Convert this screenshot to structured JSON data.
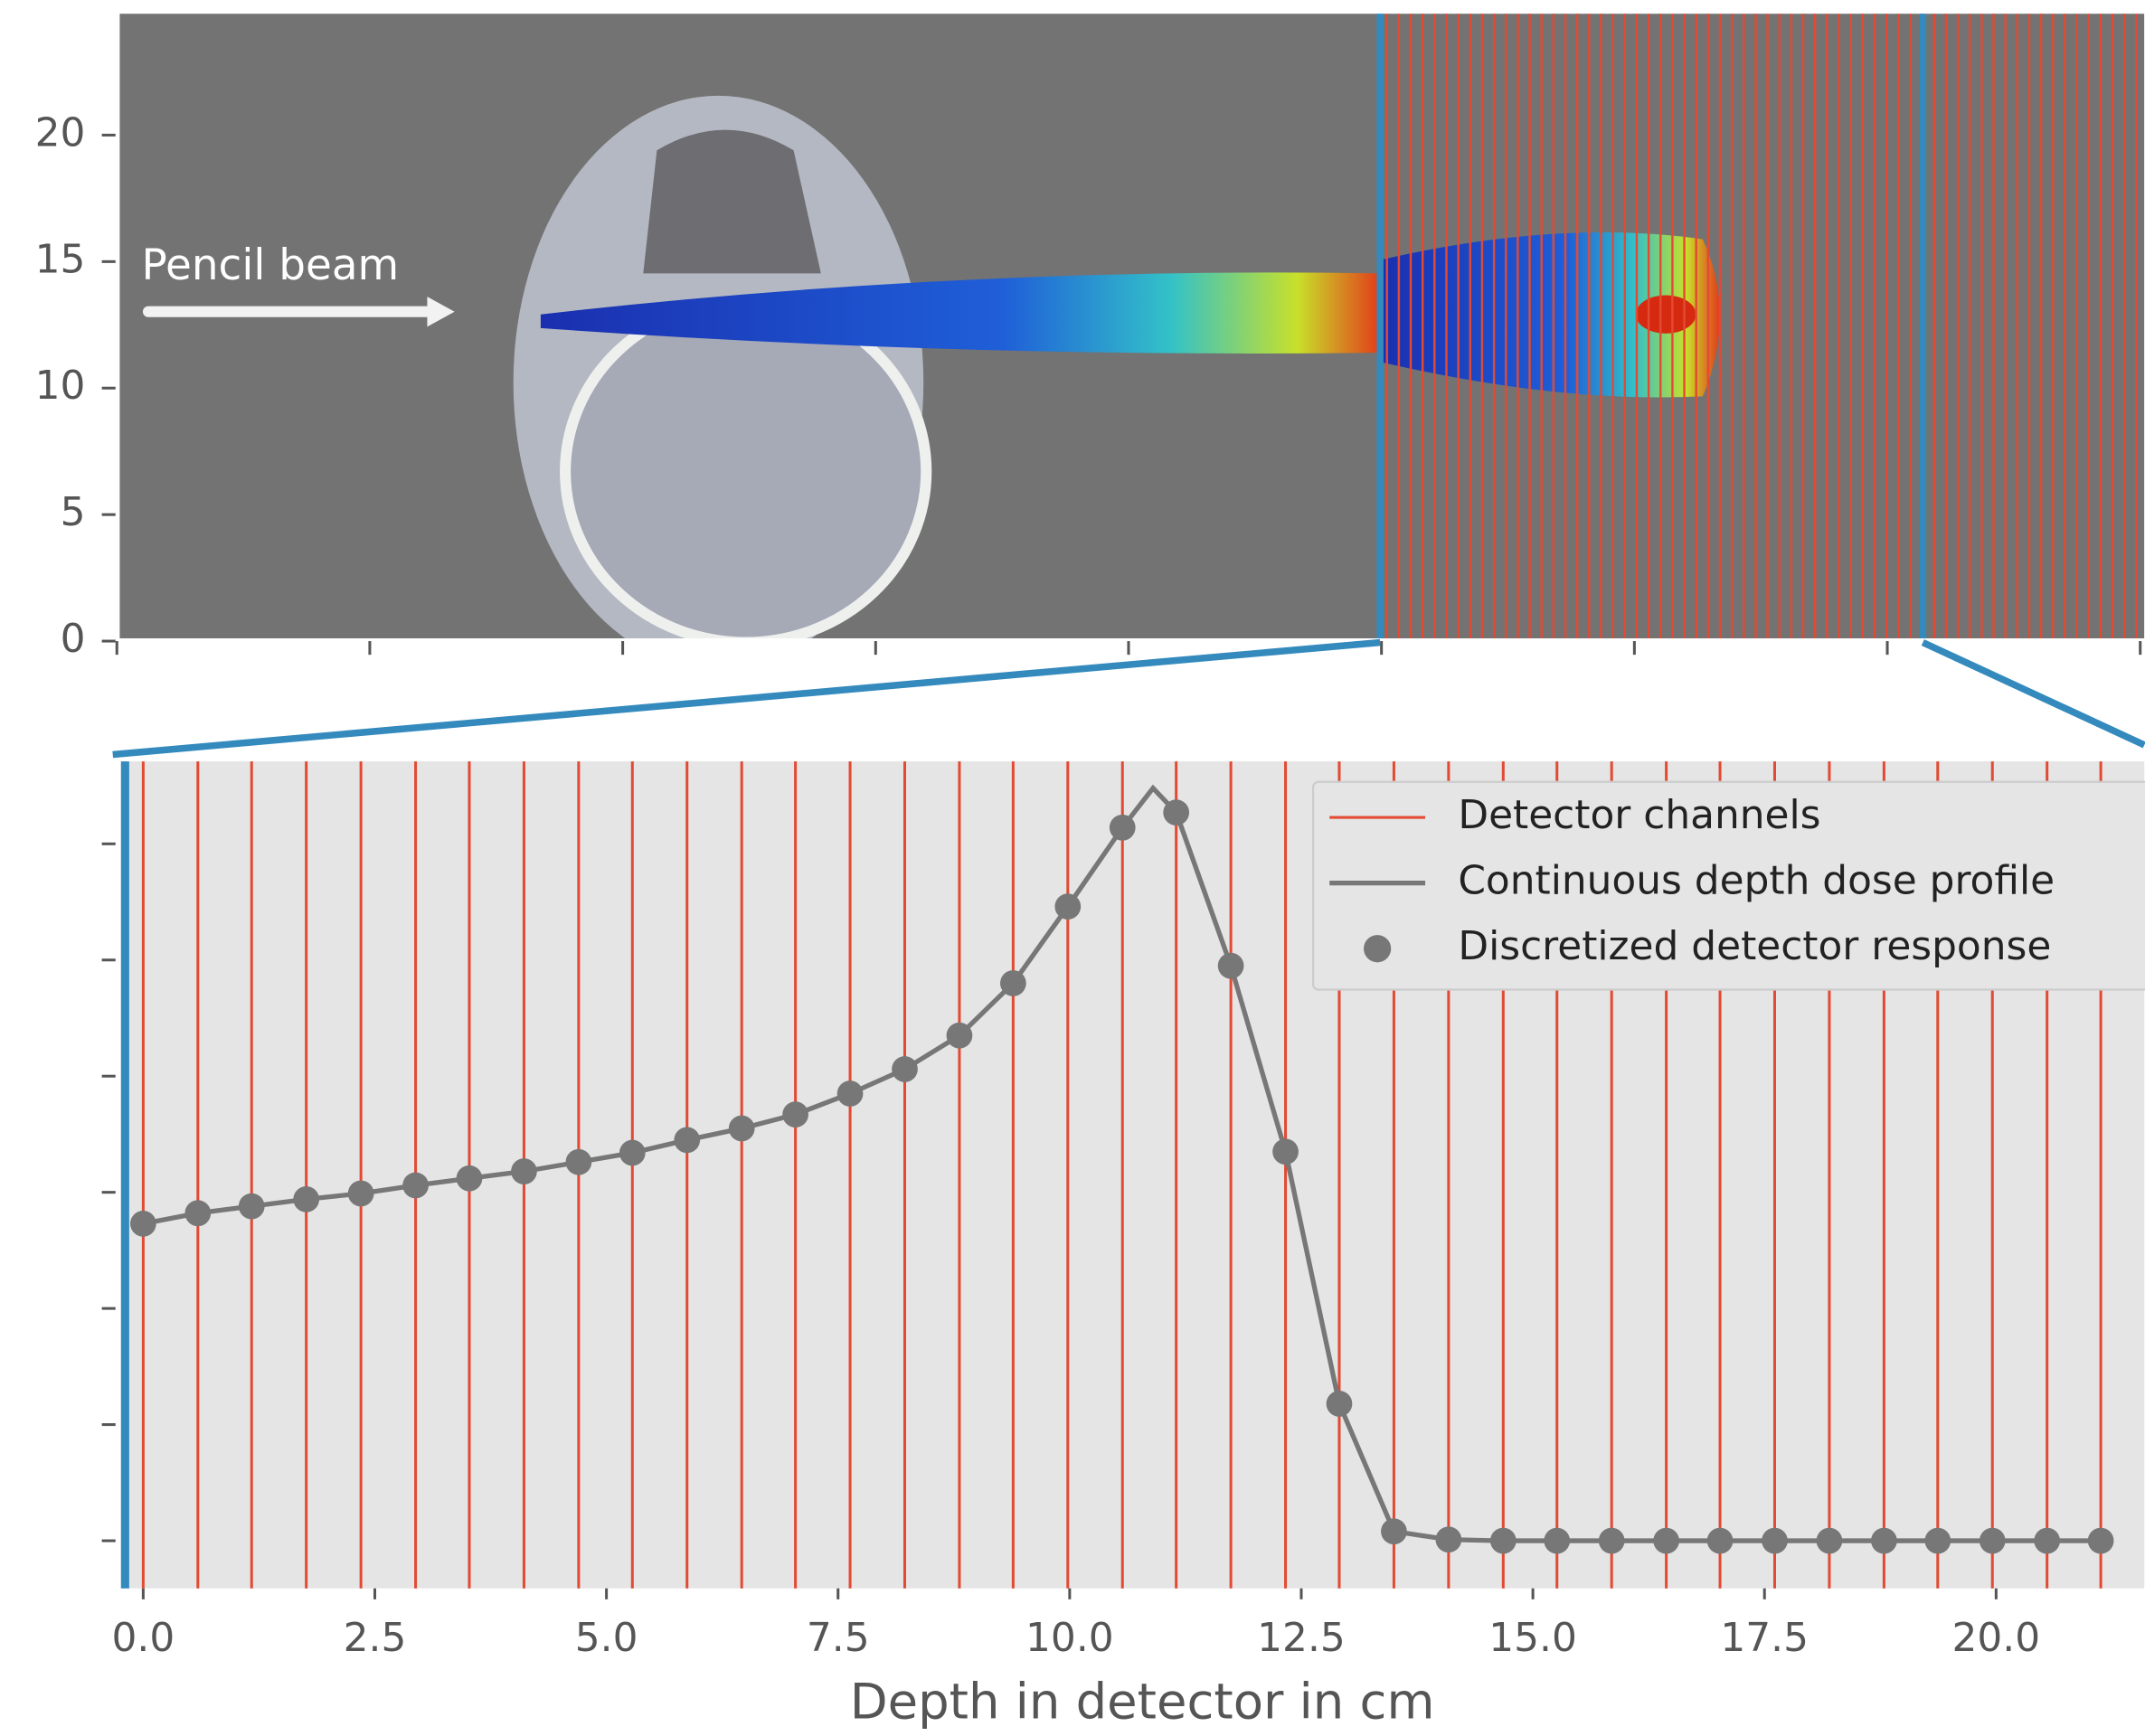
{
  "chart_data": [
    {
      "type": "image",
      "annotation": "Pencil beam",
      "ylim": [
        0,
        24.8
      ],
      "yticks": [
        0,
        5,
        10,
        15,
        20
      ]
    },
    {
      "type": "line",
      "xlabel": "Depth in detector in cm",
      "xlim": [
        -0.24,
        21.6
      ],
      "ylim": [
        -0.41,
        6.71
      ],
      "xticks": [
        {
          "value": 0,
          "label": "0.0"
        },
        {
          "value": 2.5,
          "label": "2.5"
        },
        {
          "value": 5,
          "label": "5.0"
        },
        {
          "value": 7.5,
          "label": "7.5"
        },
        {
          "value": 10,
          "label": "10.0"
        },
        {
          "value": 12.5,
          "label": "12.5"
        },
        {
          "value": 15,
          "label": "15.0"
        },
        {
          "value": 17.5,
          "label": "17.5"
        },
        {
          "value": 20,
          "label": "20.0"
        }
      ],
      "yticks": [
        0,
        1,
        2,
        3,
        4,
        5,
        6
      ],
      "legend": "upper right",
      "series": [
        {
          "name": "Detector channels",
          "color": "#e24a33",
          "kind": "vline",
          "x": [
            0,
            0.59,
            1.17,
            1.76,
            2.35,
            2.94,
            3.52,
            4.11,
            4.7,
            5.28,
            5.87,
            6.46,
            7.04,
            7.63,
            8.22,
            8.81,
            9.39,
            9.98,
            10.57,
            11.15,
            11.74,
            12.33,
            12.91,
            13.5,
            14.09,
            14.68,
            15.26,
            15.85,
            16.44,
            17.02,
            17.61,
            18.2,
            18.79,
            19.37,
            19.96,
            20.55,
            21.13
          ]
        },
        {
          "name": "Continuous depth dose profile",
          "color": "#777777",
          "kind": "line",
          "x": [
            0,
            0.59,
            1.17,
            1.76,
            2.35,
            2.94,
            3.52,
            4.11,
            4.7,
            5.28,
            5.87,
            6.46,
            7.04,
            7.63,
            8.22,
            8.81,
            9.39,
            9.98,
            10.57,
            10.9,
            11.15,
            11.74,
            12.33,
            12.91,
            13.5,
            14.09,
            14.68,
            15.26,
            15.85,
            16.44,
            17.02,
            17.61,
            18.2,
            18.79,
            19.37,
            19.96,
            20.55,
            21.13
          ],
          "values": [
            2.73,
            2.82,
            2.88,
            2.94,
            2.99,
            3.06,
            3.12,
            3.18,
            3.26,
            3.34,
            3.45,
            3.55,
            3.67,
            3.85,
            4.06,
            4.35,
            4.8,
            5.46,
            6.14,
            6.48,
            6.27,
            4.95,
            3.35,
            1.18,
            0.08,
            0.01,
            0,
            0,
            0,
            0,
            0,
            0,
            0,
            0,
            0,
            0,
            0,
            0
          ]
        },
        {
          "name": "Discretized detector response",
          "color": "#777777",
          "kind": "scatter",
          "x": [
            0,
            0.59,
            1.17,
            1.76,
            2.35,
            2.94,
            3.52,
            4.11,
            4.7,
            5.28,
            5.87,
            6.46,
            7.04,
            7.63,
            8.22,
            8.81,
            9.39,
            9.98,
            10.57,
            11.15,
            11.74,
            12.33,
            12.91,
            13.5,
            14.09,
            14.68,
            15.26,
            15.85,
            16.44,
            17.02,
            17.61,
            18.2,
            18.79,
            19.37,
            19.96,
            20.55,
            21.13
          ],
          "values": [
            2.73,
            2.82,
            2.88,
            2.94,
            2.99,
            3.06,
            3.12,
            3.18,
            3.26,
            3.34,
            3.45,
            3.55,
            3.67,
            3.85,
            4.06,
            4.35,
            4.8,
            5.46,
            6.14,
            6.27,
            4.95,
            3.35,
            1.18,
            0.08,
            0.01,
            0,
            0,
            0,
            0,
            0,
            0,
            0,
            0,
            0,
            0,
            0,
            0
          ]
        }
      ]
    }
  ]
}
